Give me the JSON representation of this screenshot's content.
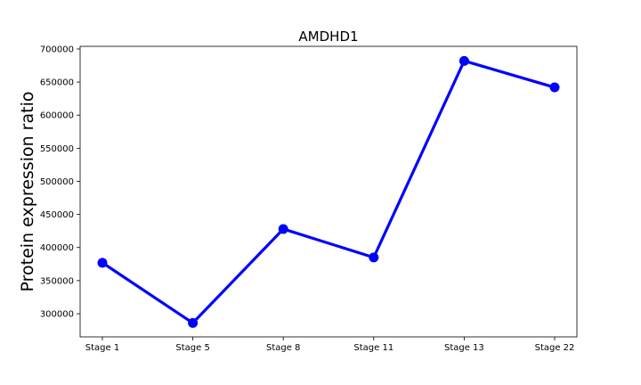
{
  "chart_data": {
    "type": "line",
    "title": "AMDHD1",
    "xlabel": "",
    "ylabel": "Protein expression ratio",
    "categories": [
      "Stage 1",
      "Stage 5",
      "Stage 8",
      "Stage 11",
      "Stage 13",
      "Stage 22"
    ],
    "series": [
      {
        "values": [
          377000,
          286000,
          428000,
          385000,
          682000,
          642000
        ],
        "color": "#0000ff",
        "marker": "circle"
      }
    ],
    "ylim": [
      265000,
      704000
    ],
    "yticks": [
      300000,
      350000,
      400000,
      450000,
      500000,
      550000,
      600000,
      650000,
      700000
    ],
    "grid": false,
    "legend": "none"
  }
}
